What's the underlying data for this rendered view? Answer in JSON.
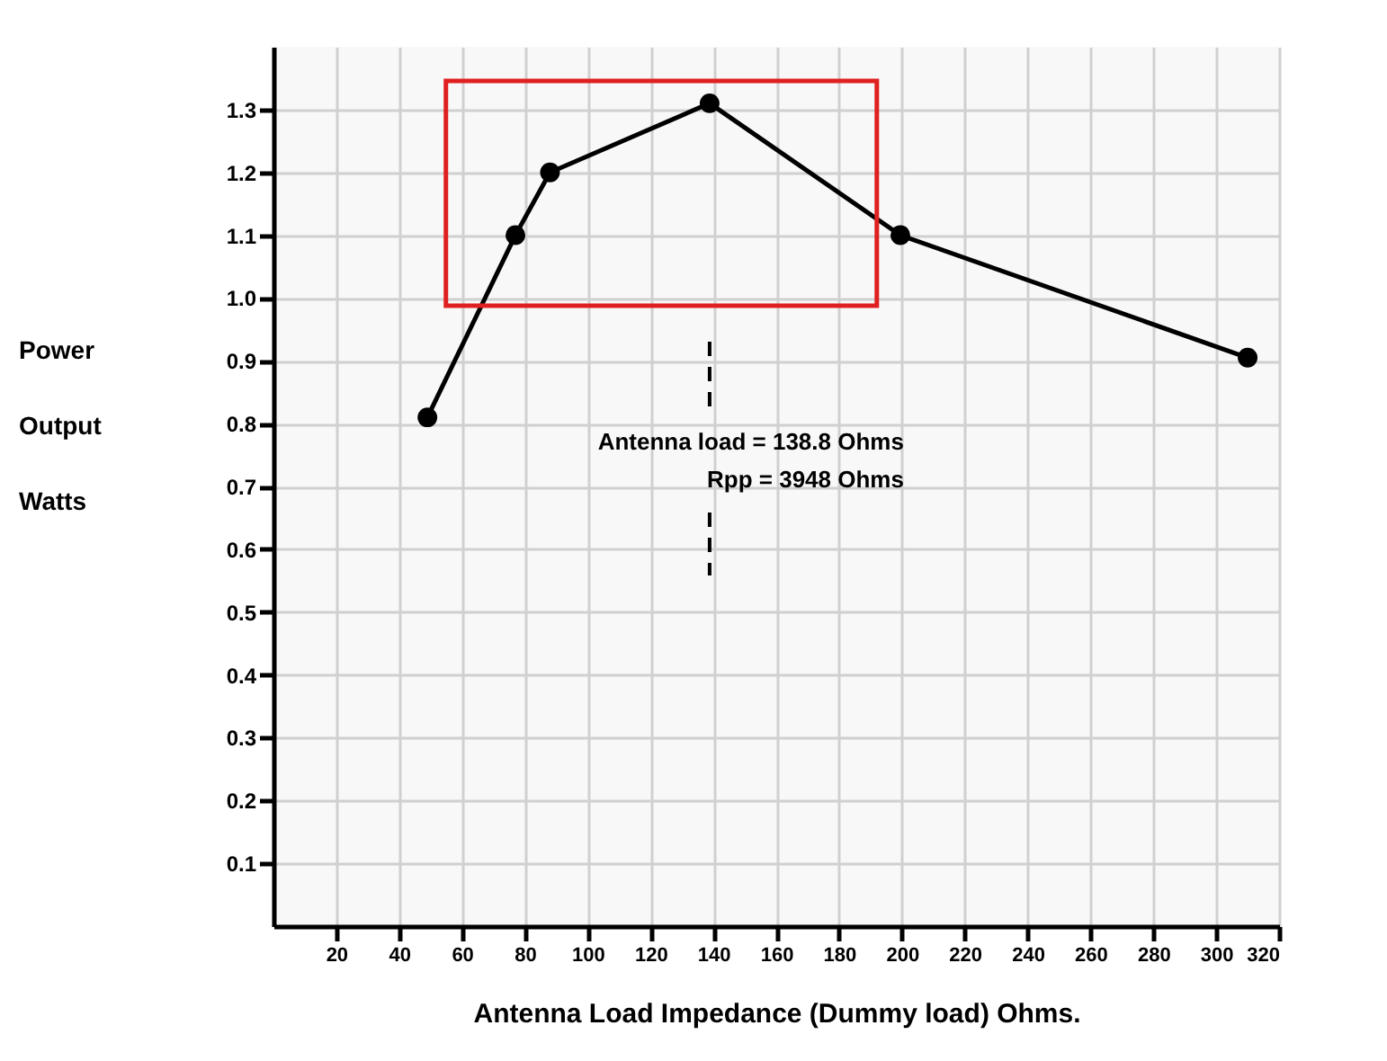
{
  "chart_data": {
    "type": "line",
    "xlabel": "Antenna Load Impedance (Dummy load)  Ohms.",
    "ylabel": "Power\nOutput\nWatts",
    "x": [
      49,
      77,
      88,
      138.8,
      199.5,
      310
    ],
    "series": [
      {
        "color": "#000000",
        "values": [
          0.81,
          1.1,
          1.2,
          1.31,
          1.1,
          0.905
        ]
      }
    ],
    "xlim": [
      0,
      320
    ],
    "ylim": [
      0,
      1.4
    ],
    "xticks": [
      20,
      40,
      60,
      80,
      100,
      120,
      140,
      160,
      180,
      200,
      220,
      240,
      260,
      280,
      300,
      320
    ],
    "yticks": [
      0.1,
      0.2,
      0.3,
      0.4,
      0.5,
      0.6,
      0.7,
      0.8,
      0.9,
      {
        "value": 1.0,
        "label": "1.0"
      },
      1.1,
      1.2,
      1.3
    ],
    "grid": true,
    "marker": "circle",
    "line_style": "solid",
    "ref_lines": [
      {
        "axis": "x",
        "value": 138.8,
        "color": "#000000",
        "line_style": "dashed"
      }
    ],
    "annotations": [
      "Antenna load = 138.8 Ohms",
      "Rpp = 3948 Ohms"
    ]
  }
}
